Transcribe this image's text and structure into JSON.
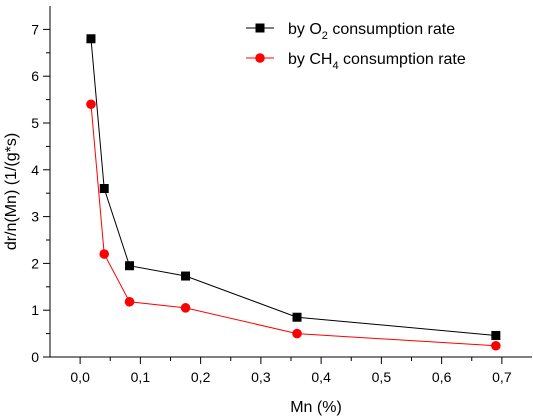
{
  "chart_data": {
    "type": "line",
    "xlabel": "Mn (%)",
    "ylabel": "dr/n(Mn) (1/(g*s)",
    "xlim": [
      -0.05,
      0.75
    ],
    "ylim": [
      0,
      7.5
    ],
    "x_ticks": [
      0.0,
      0.1,
      0.2,
      0.3,
      0.4,
      0.5,
      0.6,
      0.7
    ],
    "x_tick_labels": [
      "0,0",
      "0,1",
      "0,2",
      "0,3",
      "0,4",
      "0,5",
      "0,6",
      "0,7"
    ],
    "y_ticks": [
      0,
      1,
      2,
      3,
      4,
      5,
      6,
      7
    ],
    "y_tick_labels": [
      "0",
      "1",
      "2",
      "3",
      "4",
      "5",
      "6",
      "7"
    ],
    "grid": false,
    "legend_position": "top-right",
    "series": [
      {
        "legend_prefix": "by O",
        "legend_sub": "2",
        "legend_suffix": " consumption rate",
        "color": "#000000",
        "marker": "square",
        "x": [
          0.018,
          0.04,
          0.082,
          0.175,
          0.36,
          0.69
        ],
        "y": [
          6.8,
          3.6,
          1.95,
          1.73,
          0.85,
          0.46
        ]
      },
      {
        "legend_prefix": "by CH",
        "legend_sub": "4",
        "legend_suffix": " consumption rate",
        "color": "#ff0000",
        "marker": "circle",
        "x": [
          0.018,
          0.04,
          0.082,
          0.175,
          0.36,
          0.69
        ],
        "y": [
          5.4,
          2.2,
          1.18,
          1.05,
          0.5,
          0.24
        ]
      }
    ]
  }
}
